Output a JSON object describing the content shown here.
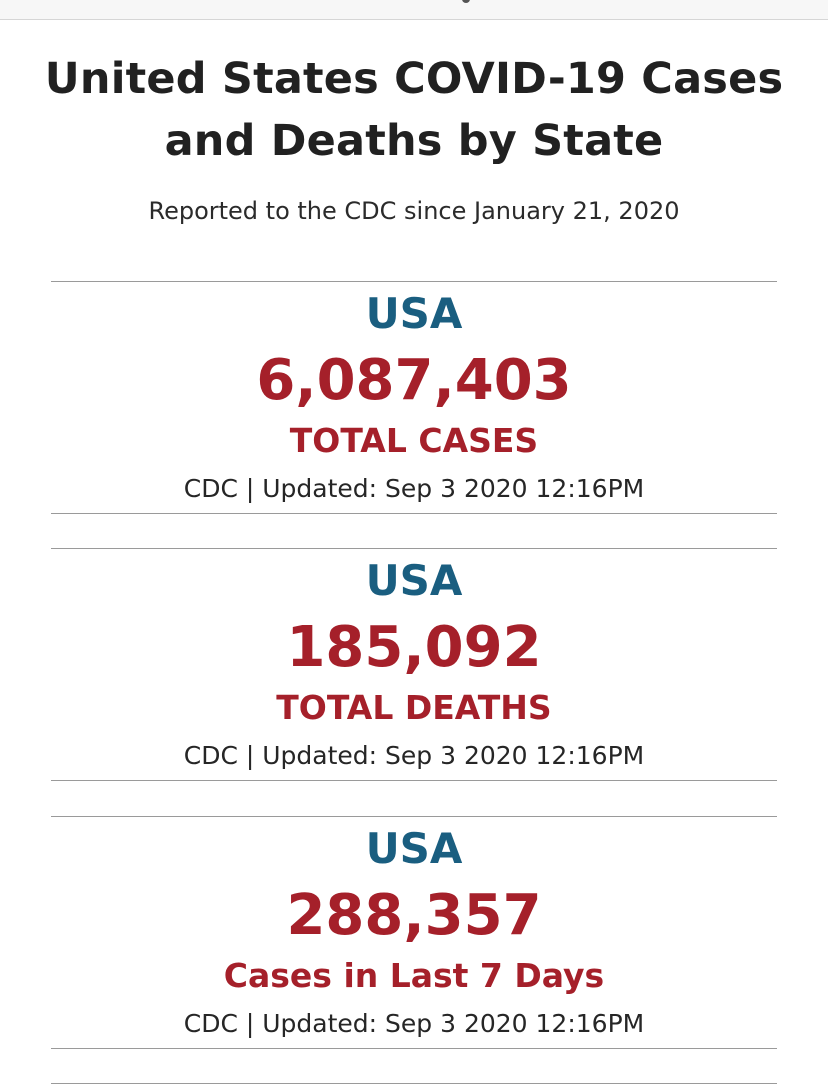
{
  "header": {
    "title_line1": "United States COVID-19 Cases",
    "title_line2": "and Deaths by State",
    "subtitle": "Reported to the CDC since January 21, 2020"
  },
  "cards": [
    {
      "region": "USA",
      "value": "6,087,403",
      "metric": "TOTAL CASES",
      "source": "CDC | Updated: Sep 3 2020 12:16PM"
    },
    {
      "region": "USA",
      "value": "185,092",
      "metric": "TOTAL DEATHS",
      "source": "CDC | Updated: Sep 3 2020 12:16PM"
    },
    {
      "region": "USA",
      "value": "288,357",
      "metric": "Cases in Last 7 Days",
      "source": "CDC | Updated: Sep 3 2020 12:16PM"
    }
  ],
  "colors": {
    "region_blue": "#1a5e80",
    "value_red": "#a5202a",
    "text_dark": "#212121",
    "divider_gray": "#9a9a9a"
  }
}
